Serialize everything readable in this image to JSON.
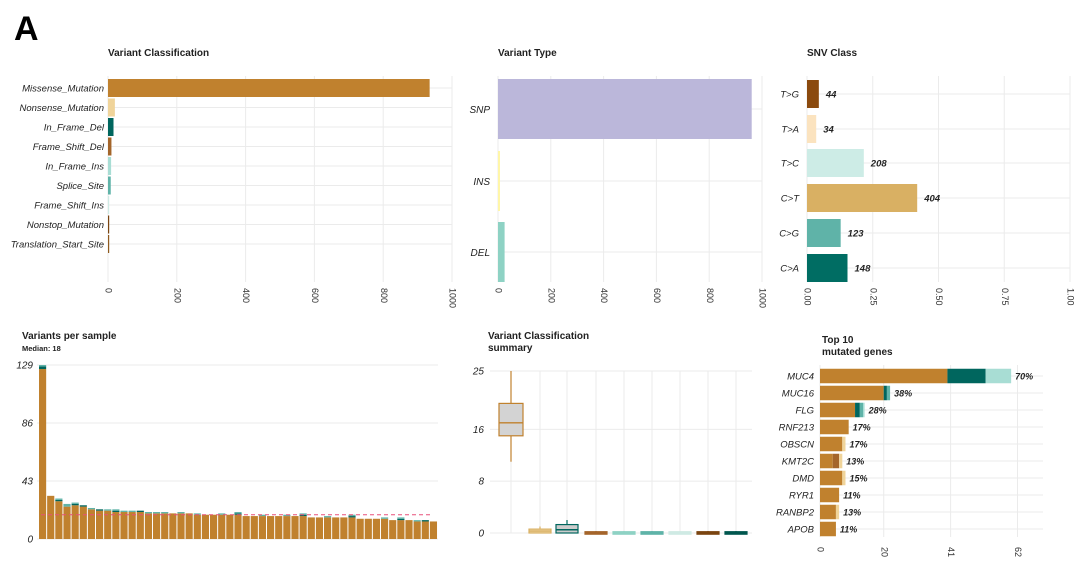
{
  "panel_label": "A",
  "colors": {
    "missense": "#C0812E",
    "nonsense": "#F0D49A",
    "in_frame_del": "#00665E",
    "frame_shift_del": "#A4652A",
    "in_frame_ins": "#A8DDD4",
    "splice_site": "#5FB3A8",
    "frame_shift_ins": "#CFEAE4",
    "nonstop": "#7A4410",
    "translation_start": "#8F5A1E",
    "snp": "#BBB7DA",
    "ins": "#FFF6A8",
    "del": "#8ED2C4",
    "median_line": "#E8507A",
    "grid": "#EBEBEB"
  },
  "chart_data": [
    {
      "id": "variant-classification",
      "type": "bar",
      "orientation": "horizontal",
      "title": "Variant Classification",
      "categories": [
        "Missense_Mutation",
        "Nonsense_Mutation",
        "In_Frame_Del",
        "Frame_Shift_Del",
        "In_Frame_Ins",
        "Splice_Site",
        "Frame_Shift_Ins",
        "Nonstop_Mutation",
        "Translation_Start_Site"
      ],
      "values": [
        935,
        20,
        16,
        10,
        9,
        8,
        3,
        2,
        1
      ],
      "bar_colors": [
        "#C0812E",
        "#F0D49A",
        "#00665E",
        "#A4652A",
        "#A8DDD4",
        "#5FB3A8",
        "#CFEAE4",
        "#7A4410",
        "#8F5A1E"
      ],
      "xlim": [
        0,
        1000
      ],
      "xticks": [
        0,
        200,
        400,
        600,
        800,
        1000
      ]
    },
    {
      "id": "variant-type",
      "type": "bar",
      "orientation": "horizontal",
      "title": "Variant Type",
      "categories": [
        "SNP",
        "INS",
        "DEL"
      ],
      "values": [
        961,
        5,
        25
      ],
      "bar_colors": [
        "#BBB7DA",
        "#FFF6A8",
        "#8ED2C4"
      ],
      "xlim": [
        0,
        1000
      ],
      "xticks": [
        0,
        200,
        400,
        600,
        800,
        1000
      ]
    },
    {
      "id": "snv-class",
      "type": "bar",
      "orientation": "horizontal",
      "title": "SNV Class",
      "categories": [
        "T>G",
        "T>A",
        "T>C",
        "C>T",
        "C>G",
        "C>A"
      ],
      "values": [
        0.045,
        0.035,
        0.216,
        0.419,
        0.128,
        0.154
      ],
      "labels": [
        "44",
        "34",
        "208",
        "404",
        "123",
        "148"
      ],
      "bar_colors": [
        "#8B4A0E",
        "#FBE3BF",
        "#CDECE6",
        "#D9B063",
        "#5FB3A8",
        "#006D63"
      ],
      "xlim": [
        0,
        1
      ],
      "xticks": [
        "0.00",
        "0.25",
        "0.50",
        "0.75",
        "1.00"
      ]
    },
    {
      "id": "variants-per-sample",
      "type": "bar",
      "stacked": true,
      "title": "Variants per sample",
      "subtitle": "Median: 18",
      "median": 18,
      "ylim": [
        0,
        129
      ],
      "yticks": [
        "0",
        "43",
        "86",
        "129"
      ],
      "series": [
        {
          "name": "Missense_Mutation",
          "color": "#C0812E",
          "values": [
            126,
            32,
            28,
            24,
            25,
            24,
            22,
            21,
            21,
            20,
            20,
            20,
            20,
            19,
            19,
            19,
            19,
            19,
            19,
            18,
            18,
            18,
            18,
            18,
            18,
            17,
            17,
            17,
            17,
            17,
            17,
            17,
            17,
            16,
            16,
            16,
            16,
            16,
            16,
            15,
            15,
            15,
            15,
            14,
            14,
            14,
            13,
            13,
            13
          ]
        },
        {
          "name": "In_Frame_Del",
          "color": "#00665E",
          "values": [
            2,
            0,
            1,
            0,
            1,
            1,
            0,
            1,
            0,
            1,
            0,
            0,
            1,
            0,
            0,
            0,
            0,
            0,
            0,
            0,
            0,
            0,
            0,
            0,
            1,
            0,
            0,
            0,
            0,
            0,
            0,
            0,
            1,
            0,
            0,
            0,
            0,
            0,
            1,
            0,
            0,
            0,
            0,
            0,
            1,
            0,
            0,
            1,
            0
          ]
        },
        {
          "name": "Splice_Site",
          "color": "#5FB3A8",
          "values": [
            1,
            0,
            1,
            2,
            1,
            0,
            1,
            0,
            1,
            1,
            1,
            1,
            0,
            1,
            1,
            1,
            0,
            1,
            0,
            1,
            0,
            0,
            1,
            0,
            1,
            0,
            0,
            1,
            0,
            0,
            1,
            0,
            1,
            0,
            0,
            1,
            0,
            0,
            1,
            0,
            0,
            0,
            1,
            0,
            1,
            0,
            1,
            0,
            0
          ]
        }
      ]
    },
    {
      "id": "variant-classification-summary",
      "type": "boxplot",
      "title": "Variant Classification",
      "title_line2": "summary",
      "ylim": [
        0,
        25
      ],
      "yticks": [
        "0",
        "8",
        "16",
        "25"
      ],
      "boxes": [
        {
          "name": "Missense_Mutation",
          "color": "#C0812E",
          "fill": "#D3D3D3",
          "min": 11,
          "q1": 15,
          "median": 17,
          "q3": 20,
          "max": 25
        },
        {
          "name": "Nonsense_Mutation",
          "color": "#D9B063",
          "fill": "#EFD9A8",
          "min": 0,
          "q1": 0,
          "median": 0.3,
          "q3": 0.6,
          "max": 1
        },
        {
          "name": "In_Frame_Del",
          "color": "#00665E",
          "fill": "#CCCCCC",
          "min": 0,
          "q1": 0,
          "median": 0.5,
          "q3": 1.3,
          "max": 2
        },
        {
          "name": "Frame_Shift_Del",
          "color": "#A4652A",
          "fill": "#A4652A",
          "min": 0,
          "q1": 0,
          "median": 0,
          "q3": 0.2,
          "max": 0.3
        },
        {
          "name": "In_Frame_Ins",
          "color": "#8ED2C4",
          "fill": "#8ED2C4",
          "min": 0,
          "q1": 0,
          "median": 0,
          "q3": 0.2,
          "max": 0.3
        },
        {
          "name": "Splice_Site",
          "color": "#5FB3A8",
          "fill": "#5FB3A8",
          "min": 0,
          "q1": 0,
          "median": 0,
          "q3": 0.2,
          "max": 0.3
        },
        {
          "name": "Frame_Shift_Ins",
          "color": "#CFEAE4",
          "fill": "#CFEAE4",
          "min": 0,
          "q1": 0,
          "median": 0,
          "q3": 0.2,
          "max": 0.3
        },
        {
          "name": "Nonstop_Mutation",
          "color": "#7A4410",
          "fill": "#7A4410",
          "min": 0,
          "q1": 0,
          "median": 0,
          "q3": 0.2,
          "max": 0.3
        },
        {
          "name": "Translation_Start_Site",
          "color": "#00574F",
          "fill": "#00574F",
          "min": 0,
          "q1": 0,
          "median": 0,
          "q3": 0.2,
          "max": 0.3
        }
      ]
    },
    {
      "id": "top10-mutated-genes",
      "type": "bar",
      "orientation": "horizontal",
      "stacked": true,
      "title": "Top 10",
      "title_line2": "mutated genes",
      "xlim": [
        0,
        70
      ],
      "xticks": [
        "0",
        "20",
        "41",
        "62"
      ],
      "categories": [
        "MUC4",
        "MUC16",
        "FLG",
        "RNF213",
        "OBSCN",
        "KMT2C",
        "DMD",
        "RYR1",
        "RANBP2",
        "APOB"
      ],
      "labels": [
        "70%",
        "38%",
        "28%",
        "17%",
        "17%",
        "13%",
        "15%",
        "11%",
        "13%",
        "11%"
      ],
      "series": [
        {
          "name": "Missense_Mutation",
          "color": "#C0812E",
          "values": [
            40,
            20,
            11,
            9,
            7,
            4,
            7,
            6,
            5,
            5
          ]
        },
        {
          "name": "Nonsense_Mutation",
          "color": "#F0D49A",
          "values": [
            0,
            0,
            0,
            0,
            1,
            0,
            1,
            0,
            1,
            0
          ]
        },
        {
          "name": "In_Frame_Del",
          "color": "#00665E",
          "values": [
            12,
            1,
            1.5,
            0,
            0,
            0,
            0,
            0,
            0,
            0
          ]
        },
        {
          "name": "Frame_Shift_Del",
          "color": "#A4652A",
          "values": [
            0,
            0,
            0,
            0,
            0,
            2,
            0,
            0,
            0,
            0
          ]
        },
        {
          "name": "Splice_Site",
          "color": "#5FB3A8",
          "values": [
            0,
            1,
            1,
            0,
            0,
            0,
            0,
            0,
            0,
            0
          ]
        },
        {
          "name": "In_Frame_Ins",
          "color": "#A8DDD4",
          "values": [
            8,
            0,
            0.5,
            0,
            0,
            0,
            0,
            0,
            0,
            0
          ]
        },
        {
          "name": "Nonsense_Mutation",
          "color": "#F0D49A",
          "values": [
            0,
            0,
            0,
            0,
            0,
            1,
            0,
            0,
            0,
            0
          ]
        }
      ]
    }
  ]
}
